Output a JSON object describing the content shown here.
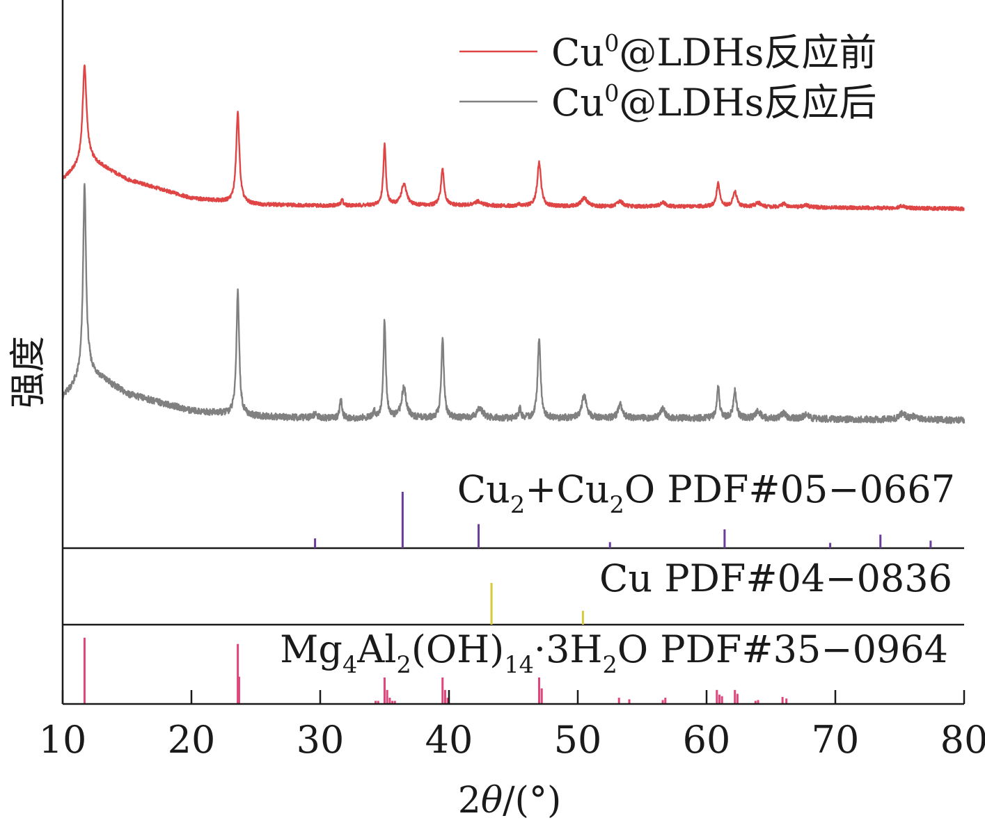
{
  "chart_data": {
    "type": "line",
    "xlabel_parts": [
      "2",
      "θ",
      "/(°)"
    ],
    "ylabel": "强度",
    "xlim": [
      10,
      80
    ],
    "x_ticks": [
      10,
      20,
      30,
      40,
      50,
      60,
      70,
      80
    ],
    "grid": false,
    "legend_position": "top-right",
    "series": [
      {
        "name_parts": [
          "Cu",
          "0",
          "@LDHs反应前"
        ],
        "color": "#e04545",
        "baseline": [
          [
            10,
            0.28
          ],
          [
            12,
            0.48
          ],
          [
            15,
            0.28
          ],
          [
            20,
            0.1
          ],
          [
            25,
            0.04
          ],
          [
            30,
            0.03
          ],
          [
            40,
            0.03
          ],
          [
            50,
            0.02
          ],
          [
            60,
            0.02
          ],
          [
            70,
            0.01
          ],
          [
            80,
            0.0
          ]
        ],
        "peaks": [
          {
            "x": 11.7,
            "h": 0.92,
            "w": 0.18
          },
          {
            "x": 23.6,
            "h": 0.86,
            "w": 0.15
          },
          {
            "x": 31.7,
            "h": 0.06,
            "w": 0.1
          },
          {
            "x": 35.0,
            "h": 0.58,
            "w": 0.12
          },
          {
            "x": 36.5,
            "h": 0.2,
            "w": 0.25
          },
          {
            "x": 39.5,
            "h": 0.34,
            "w": 0.15
          },
          {
            "x": 42.3,
            "h": 0.04,
            "w": 0.35
          },
          {
            "x": 45.4,
            "h": 0.02,
            "w": 0.1
          },
          {
            "x": 47.0,
            "h": 0.42,
            "w": 0.17
          },
          {
            "x": 50.5,
            "h": 0.08,
            "w": 0.3
          },
          {
            "x": 53.3,
            "h": 0.05,
            "w": 0.25
          },
          {
            "x": 56.6,
            "h": 0.04,
            "w": 0.25
          },
          {
            "x": 60.9,
            "h": 0.22,
            "w": 0.15
          },
          {
            "x": 62.2,
            "h": 0.15,
            "w": 0.17
          },
          {
            "x": 64.0,
            "h": 0.04,
            "w": 0.25
          },
          {
            "x": 66.0,
            "h": 0.03,
            "w": 0.25
          },
          {
            "x": 67.7,
            "h": 0.02,
            "w": 0.3
          },
          {
            "x": 75.2,
            "h": 0.02,
            "w": 0.3
          }
        ]
      },
      {
        "name_parts": [
          "Cu",
          "0",
          "@LDHs反应后"
        ],
        "color": "#808080",
        "baseline": [
          [
            10,
            0.12
          ],
          [
            12,
            0.27
          ],
          [
            15,
            0.14
          ],
          [
            20,
            0.05
          ],
          [
            25,
            0.02
          ],
          [
            30,
            0.01
          ],
          [
            40,
            0.01
          ],
          [
            60,
            0.01
          ],
          [
            80,
            0.0
          ]
        ],
        "peaks": [
          {
            "x": 11.7,
            "h": 1.0,
            "w": 0.14
          },
          {
            "x": 23.6,
            "h": 0.66,
            "w": 0.13
          },
          {
            "x": 29.6,
            "h": 0.02,
            "w": 0.2
          },
          {
            "x": 31.6,
            "h": 0.1,
            "w": 0.1
          },
          {
            "x": 34.2,
            "h": 0.03,
            "w": 0.1
          },
          {
            "x": 35.0,
            "h": 0.52,
            "w": 0.11
          },
          {
            "x": 36.5,
            "h": 0.16,
            "w": 0.22
          },
          {
            "x": 39.5,
            "h": 0.43,
            "w": 0.12
          },
          {
            "x": 42.4,
            "h": 0.05,
            "w": 0.3
          },
          {
            "x": 45.5,
            "h": 0.05,
            "w": 0.1
          },
          {
            "x": 47.0,
            "h": 0.43,
            "w": 0.13
          },
          {
            "x": 50.5,
            "h": 0.12,
            "w": 0.22
          },
          {
            "x": 53.3,
            "h": 0.07,
            "w": 0.2
          },
          {
            "x": 56.6,
            "h": 0.05,
            "w": 0.2
          },
          {
            "x": 60.9,
            "h": 0.17,
            "w": 0.12
          },
          {
            "x": 62.2,
            "h": 0.15,
            "w": 0.14
          },
          {
            "x": 64.0,
            "h": 0.04,
            "w": 0.22
          },
          {
            "x": 66.0,
            "h": 0.03,
            "w": 0.22
          },
          {
            "x": 67.7,
            "h": 0.02,
            "w": 0.3
          },
          {
            "x": 75.2,
            "h": 0.03,
            "w": 0.3
          },
          {
            "x": 76.2,
            "h": 0.02,
            "w": 0.3
          }
        ]
      }
    ],
    "references": [
      {
        "label_parts": [
          "Cu",
          "2",
          "+Cu",
          "2",
          "O PDF#05−0667"
        ],
        "color": "#6a3d9a",
        "lines": [
          [
            29.6,
            0.13
          ],
          [
            36.4,
            0.75
          ],
          [
            42.3,
            0.32
          ],
          [
            52.5,
            0.08
          ],
          [
            61.4,
            0.25
          ],
          [
            69.6,
            0.07
          ],
          [
            73.5,
            0.18
          ],
          [
            77.4,
            0.1
          ]
        ]
      },
      {
        "label_parts": [
          "Cu PDF#04−0836"
        ],
        "color": "#d8cb3a",
        "lines": [
          [
            43.3,
            0.6
          ],
          [
            50.4,
            0.2
          ]
        ]
      },
      {
        "label_parts": [
          "Mg",
          "4",
          "Al",
          "2",
          "(OH)",
          "14",
          "·3H",
          "2",
          "O PDF#35−0964"
        ],
        "color": "#e0457b",
        "lines": [
          [
            11.7,
            0.85
          ],
          [
            23.6,
            0.77
          ],
          [
            23.7,
            0.35
          ],
          [
            34.3,
            0.04
          ],
          [
            34.5,
            0.04
          ],
          [
            35.0,
            0.34
          ],
          [
            35.2,
            0.18
          ],
          [
            35.4,
            0.08
          ],
          [
            35.6,
            0.04
          ],
          [
            35.8,
            0.04
          ],
          [
            39.5,
            0.34
          ],
          [
            39.7,
            0.18
          ],
          [
            39.9,
            0.08
          ],
          [
            47.0,
            0.34
          ],
          [
            47.2,
            0.2
          ],
          [
            53.2,
            0.08
          ],
          [
            54.0,
            0.06
          ],
          [
            56.6,
            0.05
          ],
          [
            56.8,
            0.08
          ],
          [
            60.8,
            0.18
          ],
          [
            61.0,
            0.12
          ],
          [
            61.2,
            0.1
          ],
          [
            62.2,
            0.18
          ],
          [
            62.4,
            0.13
          ],
          [
            63.8,
            0.04
          ],
          [
            64.0,
            0.05
          ],
          [
            65.9,
            0.09
          ],
          [
            66.2,
            0.07
          ]
        ]
      }
    ]
  }
}
